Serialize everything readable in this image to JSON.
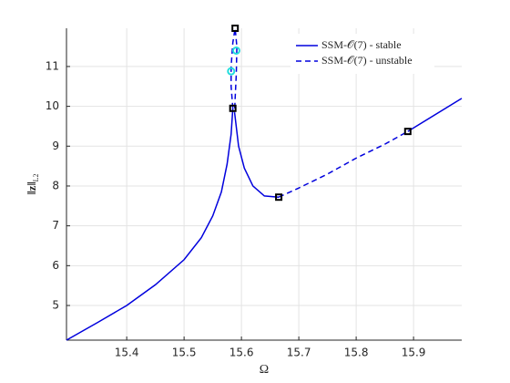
{
  "chart_data": {
    "type": "line",
    "xlabel": "Ω",
    "ylabel": "‖z‖",
    "ylabel_sub": "L2",
    "xlim": [
      15.295,
      15.984
    ],
    "ylim": [
      4.13,
      11.96
    ],
    "xticks": [
      15.4,
      15.5,
      15.6,
      15.7,
      15.8,
      15.9
    ],
    "yticks": [
      5,
      6,
      7,
      8,
      9,
      10,
      11
    ],
    "grid": true,
    "legend": "top-right",
    "series": [
      {
        "name": "SSM-𝒪(7) - stable",
        "color": "#0000dd",
        "dash": false,
        "x": [
          15.295,
          15.35,
          15.4,
          15.45,
          15.5,
          15.53,
          15.55,
          15.565,
          15.575,
          15.582,
          15.585,
          null,
          15.588,
          15.595,
          15.605,
          15.62,
          15.64,
          15.665,
          null,
          15.89,
          15.984
        ],
        "values": [
          4.13,
          4.58,
          5.0,
          5.52,
          6.15,
          6.7,
          7.25,
          7.85,
          8.55,
          9.3,
          9.95,
          null,
          9.85,
          9.0,
          8.45,
          8.0,
          7.75,
          7.72,
          null,
          9.37,
          10.2
        ]
      },
      {
        "name": "SSM-𝒪(7) - unstable",
        "color": "#0000dd",
        "dash": true,
        "x": [
          15.585,
          15.582,
          15.582,
          15.585,
          15.589,
          15.592,
          15.591,
          15.589,
          15.588,
          null,
          15.665,
          15.7,
          15.75,
          15.8,
          15.85,
          15.89
        ],
        "values": [
          9.95,
          10.5,
          11.0,
          11.6,
          11.96,
          11.5,
          10.8,
          10.2,
          9.85,
          null,
          7.72,
          7.95,
          8.3,
          8.7,
          9.05,
          9.37
        ]
      },
      {
        "color": "#000000",
        "marker": "square",
        "x": [
          15.585,
          15.589,
          15.665,
          15.89
        ],
        "values": [
          9.95,
          11.96,
          7.72,
          9.37
        ]
      },
      {
        "color": "#22dddd",
        "marker": "circle",
        "x": [
          15.582,
          15.591
        ],
        "values": [
          10.88,
          11.4
        ]
      }
    ]
  }
}
